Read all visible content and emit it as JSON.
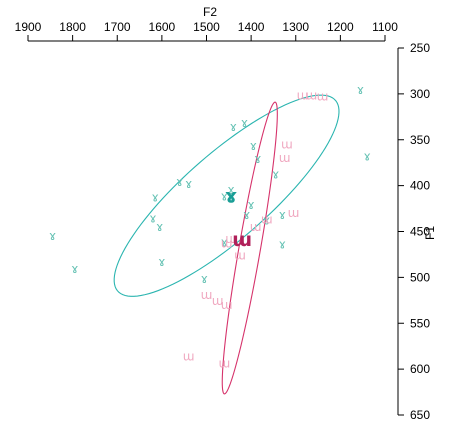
{
  "chart_data": {
    "type": "scatter",
    "x_axis": {
      "label": "F2",
      "range": [
        1900,
        1100
      ],
      "ticks": [
        1900,
        1800,
        1700,
        1600,
        1500,
        1400,
        1300,
        1200,
        1100
      ],
      "position": "top",
      "reversed": true
    },
    "y_axis": {
      "label": "F1",
      "range": [
        250,
        650
      ],
      "ticks": [
        250,
        300,
        350,
        400,
        450,
        500,
        550,
        600,
        650
      ],
      "position": "right",
      "reversed": true
    },
    "grid": false,
    "legend": "none",
    "series": [
      {
        "symbol": "ɤ",
        "color": "#66c2b4",
        "centroid_color": "#1a9e96",
        "ellipse_color": "#2bb5b0",
        "centroid": {
          "x": 1445,
          "y": 412
        },
        "ellipse": {
          "cx": 1455,
          "cy": 411,
          "rx": 269,
          "ry": 56,
          "angle_deg": -21
        },
        "points": [
          {
            "x": 1155,
            "y": 296
          },
          {
            "x": 1440,
            "y": 336
          },
          {
            "x": 1415,
            "y": 332
          },
          {
            "x": 1395,
            "y": 357
          },
          {
            "x": 1345,
            "y": 388
          },
          {
            "x": 1140,
            "y": 368
          },
          {
            "x": 1385,
            "y": 371
          },
          {
            "x": 1560,
            "y": 396
          },
          {
            "x": 1540,
            "y": 398
          },
          {
            "x": 1460,
            "y": 412
          },
          {
            "x": 1400,
            "y": 421
          },
          {
            "x": 1445,
            "y": 405
          },
          {
            "x": 1365,
            "y": 438
          },
          {
            "x": 1410,
            "y": 432
          },
          {
            "x": 1330,
            "y": 432
          },
          {
            "x": 1615,
            "y": 413
          },
          {
            "x": 1620,
            "y": 436
          },
          {
            "x": 1605,
            "y": 445
          },
          {
            "x": 1845,
            "y": 455
          },
          {
            "x": 1460,
            "y": 462
          },
          {
            "x": 1330,
            "y": 464
          },
          {
            "x": 1600,
            "y": 483
          },
          {
            "x": 1795,
            "y": 491
          },
          {
            "x": 1505,
            "y": 502
          }
        ]
      },
      {
        "symbol": "ɯ",
        "color": "#f0a8c0",
        "centroid_color": "#b0205a",
        "ellipse_color": "#d6336b",
        "centroid": {
          "x": 1420,
          "y": 459
        },
        "ellipse": {
          "cx": 1403,
          "cy": 468,
          "rx": 169,
          "ry": 23,
          "angle_deg": -70
        },
        "points": [
          {
            "x": 1285,
            "y": 302
          },
          {
            "x": 1265,
            "y": 302
          },
          {
            "x": 1240,
            "y": 303
          },
          {
            "x": 1320,
            "y": 355
          },
          {
            "x": 1325,
            "y": 370
          },
          {
            "x": 1305,
            "y": 430
          },
          {
            "x": 1365,
            "y": 437
          },
          {
            "x": 1390,
            "y": 445
          },
          {
            "x": 1455,
            "y": 463
          },
          {
            "x": 1445,
            "y": 458
          },
          {
            "x": 1425,
            "y": 476
          },
          {
            "x": 1500,
            "y": 519
          },
          {
            "x": 1475,
            "y": 526
          },
          {
            "x": 1455,
            "y": 530
          },
          {
            "x": 1540,
            "y": 586
          },
          {
            "x": 1460,
            "y": 594
          }
        ]
      }
    ]
  }
}
